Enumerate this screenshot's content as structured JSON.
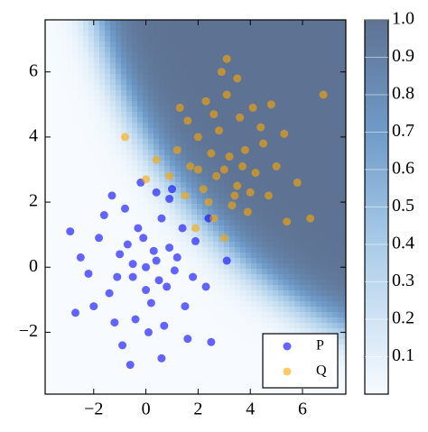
{
  "chart_data": {
    "type": "scatter",
    "xlim": [
      -3.86,
      7.66
    ],
    "ylim": [
      -3.9,
      7.6
    ],
    "xticks": [
      {
        "value": -2,
        "label": "−2"
      },
      0,
      2,
      4,
      6
    ],
    "yticks": [
      {
        "value": -2,
        "label": "−2"
      },
      0,
      2,
      4,
      6
    ],
    "colorbar": {
      "lim": [
        0,
        1
      ],
      "ticks": [
        0.1,
        0.2,
        0.3,
        0.4,
        0.5,
        0.6,
        0.7,
        0.8,
        0.9,
        {
          "value": 1,
          "label": "1.0"
        }
      ]
    },
    "legend": "lower right",
    "series": [
      {
        "name": "P",
        "color": "#0000ff",
        "x": [
          0,
          0.3,
          -0.5,
          0.8,
          -1,
          0.2,
          -0.3,
          1.2,
          -1.4,
          0.6,
          -0.8,
          1.5,
          -1.8,
          0.1,
          1.9,
          -2.2,
          0.9,
          -0.4,
          1.1,
          -1.2,
          0.4,
          -0.7,
          0.5,
          -0.1,
          1.4,
          -1.6,
          2.3,
          -2.0,
          0.7,
          -0.9,
          1.6,
          -2.9,
          -2.7,
          -0.6,
          0.6,
          2.5,
          3.1,
          -0.2,
          0.4,
          1.0,
          -1.3,
          2.4,
          -2.5,
          0.0,
          -0.5,
          0.9,
          1.8,
          -1.1
        ],
        "y": [
          0,
          0.5,
          -0.3,
          -0.6,
          0.4,
          -1.1,
          1.2,
          0.3,
          -0.8,
          1.5,
          1.8,
          -1.2,
          0.9,
          -2.0,
          0.8,
          -0.2,
          2.1,
          -1.6,
          -0.1,
          -1.7,
          0.2,
          0.7,
          -0.4,
          0.9,
          1.2,
          1.6,
          -0.6,
          -1.2,
          -1.8,
          -2.4,
          -2.2,
          1.1,
          -1.4,
          -3.0,
          -2.8,
          -2.3,
          0.2,
          2.6,
          2.3,
          2.4,
          2.2,
          1.5,
          0.3,
          -0.7,
          0.1,
          0.6,
          -0.3,
          -0.3
        ]
      },
      {
        "name": "Q",
        "color": "#ffa500",
        "x": [
          3,
          2.5,
          3.5,
          2.2,
          3.8,
          2.8,
          3.3,
          1.7,
          4.2,
          2.0,
          3.6,
          4.5,
          1.5,
          2.6,
          3.9,
          4.7,
          2.3,
          3.1,
          1.2,
          5.0,
          4.1,
          0.9,
          3.0,
          2.7,
          3.2,
          2.0,
          3.7,
          2.4,
          4.4,
          1.6,
          5.3,
          3.5,
          2.9,
          3.1,
          6.8,
          6.3,
          5.4,
          -0.8,
          0.0,
          0.4,
          5.8,
          1.9,
          3.4,
          2.6,
          4.0,
          1.3,
          4.8
        ],
        "y": [
          3,
          3.5,
          2.5,
          2.4,
          3.6,
          4.2,
          1.9,
          3.1,
          2.9,
          4.0,
          4.6,
          3.8,
          2.2,
          1.5,
          1.7,
          2.2,
          5.1,
          5.3,
          3.6,
          3.1,
          4.9,
          2.8,
          0.9,
          2.8,
          3.4,
          3.0,
          3.1,
          2.0,
          4.3,
          4.5,
          4.1,
          5.8,
          6.0,
          6.4,
          5.3,
          1.5,
          1.4,
          4.0,
          2.7,
          3.3,
          2.6,
          1.2,
          2.2,
          4.7,
          2.3,
          4.9,
          5.0
        ]
      }
    ]
  }
}
